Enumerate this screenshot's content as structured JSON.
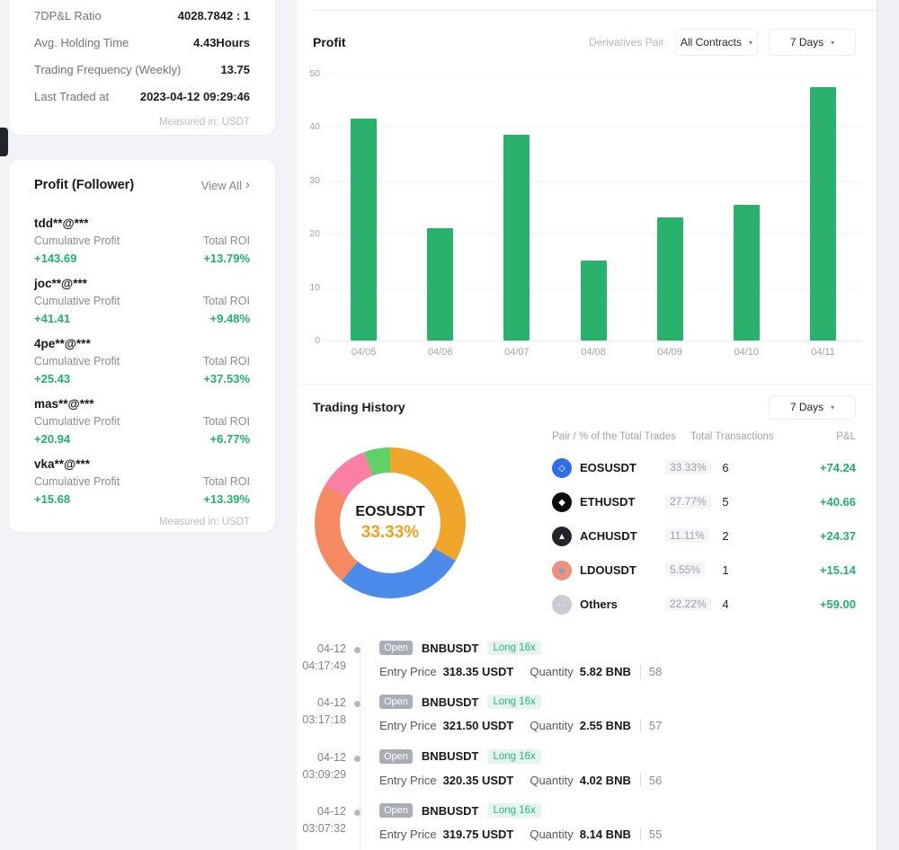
{
  "colors": {
    "green": "#20b26c",
    "bar_green": "#2ab16c",
    "amber": "#f0a21f",
    "page_bg": "#f2f3f6"
  },
  "stats_card": {
    "rows": [
      {
        "label": "7DP&L Ratio",
        "value": "4028.7842 : 1"
      },
      {
        "label": "Avg. Holding Time",
        "value": "4.43Hours"
      },
      {
        "label": "Trading Frequency (Weekly)",
        "value": "13.75"
      },
      {
        "label": "Last Traded at",
        "value": "2023-04-12 09:29:46"
      }
    ],
    "footnote": "Measured in: USDT"
  },
  "followers_card": {
    "title": "Profit (Follower)",
    "view_all": "View All",
    "chevron": "›",
    "cumulative_label": "Cumulative Profit",
    "roi_label": "Total ROI",
    "items": [
      {
        "name": "tdd**@***",
        "profit": "+143.69",
        "roi": "+13.79%"
      },
      {
        "name": "joc**@***",
        "profit": "+41.41",
        "roi": "+9.48%"
      },
      {
        "name": "4pe**@***",
        "profit": "+25.43",
        "roi": "+37.53%"
      },
      {
        "name": "mas**@***",
        "profit": "+20.94",
        "roi": "+6.77%"
      },
      {
        "name": "vka**@***",
        "profit": "+15.68",
        "roi": "+13.39%"
      }
    ],
    "footnote": "Measured in: USDT"
  },
  "profit_section": {
    "title": "Profit",
    "pair_label": "Derivatives Pair",
    "contracts_dropdown": "All Contracts",
    "days_dropdown": "7 Days",
    "caret": "▾"
  },
  "chart_data": [
    {
      "type": "bar",
      "title": "Profit",
      "categories": [
        "04/05",
        "04/06",
        "04/07",
        "04/08",
        "04/09",
        "04/10",
        "04/11"
      ],
      "values": [
        41.5,
        21,
        38.5,
        15,
        23,
        25.5,
        47.5
      ],
      "xlabel": "",
      "ylabel": "",
      "ylim": [
        0,
        50
      ],
      "yticks": [
        0,
        10,
        20,
        30,
        40,
        50
      ],
      "grid": true,
      "legend_position": "none",
      "bar_color": "#2ab16c"
    },
    {
      "type": "pie",
      "title": "Trading History pair share",
      "center_label": "EOSUSDT",
      "center_value": "33.33%",
      "segments": [
        {
          "name": "EOSUSDT",
          "pct": 33.33,
          "color": "#efa62a"
        },
        {
          "name": "ETHUSDT",
          "pct": 27.77,
          "color": "#4c8bea"
        },
        {
          "name": "Others",
          "pct": 22.22,
          "color": "#f58a62"
        },
        {
          "name": "ACHUSDT",
          "pct": 11.11,
          "color": "#fa80a6"
        },
        {
          "name": "LDOUSDT",
          "pct": 5.55,
          "color": "#5fd167"
        }
      ]
    }
  ],
  "trading_history": {
    "title": "Trading History",
    "days_dropdown": "7 Days",
    "caret": "▾",
    "table_headers": [
      "Pair / % of the Total Trades",
      "Total Transactions",
      "P&L"
    ],
    "pairs": [
      {
        "symbol": "EOSUSDT",
        "pct": "33.33%",
        "transactions": "6",
        "pnl": "+74.24",
        "icon": "eos-icon",
        "icon_bg": "#2f6ee8",
        "glyph": "◇"
      },
      {
        "symbol": "ETHUSDT",
        "pct": "27.77%",
        "transactions": "5",
        "pnl": "+40.66",
        "icon": "eth-icon",
        "icon_bg": "#0b0c10",
        "glyph": "◆"
      },
      {
        "symbol": "ACHUSDT",
        "pct": "11.11%",
        "transactions": "2",
        "pnl": "+24.37",
        "icon": "ach-icon",
        "icon_bg": "#22252c",
        "glyph": "▲"
      },
      {
        "symbol": "LDOUSDT",
        "pct": "5.55%",
        "transactions": "1",
        "pnl": "+15.14",
        "icon": "ldo-icon",
        "icon_bg": "#f0917e",
        "glyph": "◈"
      },
      {
        "symbol": "Others",
        "pct": "22.22%",
        "transactions": "4",
        "pnl": "+59.00",
        "icon": "others-icon",
        "icon_bg": "#c9ccd2",
        "glyph": "···"
      }
    ]
  },
  "trades": {
    "entry_label": "Entry Price",
    "quantity_label": "Quantity",
    "items": [
      {
        "date": "04-12",
        "time": "04:17:49",
        "badge": "Open",
        "symbol": "BNBUSDT",
        "side": "Long 16x",
        "entry": "318.35 USDT",
        "qty": "5.82 BNB",
        "index": "58"
      },
      {
        "date": "04-12",
        "time": "03:17:18",
        "badge": "Open",
        "symbol": "BNBUSDT",
        "side": "Long 16x",
        "entry": "321.50 USDT",
        "qty": "2.55 BNB",
        "index": "57"
      },
      {
        "date": "04-12",
        "time": "03:09:29",
        "badge": "Open",
        "symbol": "BNBUSDT",
        "side": "Long 16x",
        "entry": "320.35 USDT",
        "qty": "4.02 BNB",
        "index": "56"
      },
      {
        "date": "04-12",
        "time": "03:07:32",
        "badge": "Open",
        "symbol": "BNBUSDT",
        "side": "Long 16x",
        "entry": "319.75 USDT",
        "qty": "8.14 BNB",
        "index": "55"
      }
    ]
  }
}
